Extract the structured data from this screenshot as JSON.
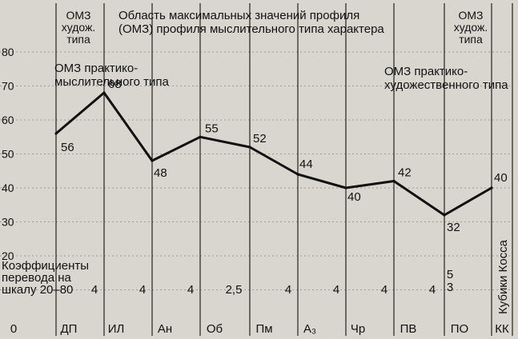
{
  "chart_data": {
    "type": "line",
    "categories": [
      "ДП",
      "ИЛ",
      "Ан",
      "Об",
      "Пм",
      "А₃",
      "Чр",
      "ПВ",
      "ПО",
      "КК"
    ],
    "leading_label": "0",
    "series": [
      {
        "values": [
          56,
          68,
          48,
          55,
          52,
          44,
          40,
          42,
          32,
          40
        ]
      }
    ],
    "data_labels": [
      "56",
      "68",
      "48",
      "55",
      "52",
      "44",
      "40",
      "42",
      "32",
      "40"
    ],
    "ylim": [
      0,
      80
    ],
    "yticks": [
      "80",
      "70",
      "60",
      "50",
      "40",
      "30",
      "20"
    ],
    "coef_label_lines": [
      "Коэффициенты",
      "перевода на",
      "шкалу 20–80"
    ],
    "coefficients": [
      "4",
      "4",
      "4",
      "2,5",
      "4",
      "4",
      "4",
      "4",
      "5",
      "3"
    ],
    "kk_vertical_label": "Кубики Косса",
    "annotations": {
      "omz_art_left": [
        "ОМЗ",
        "худож.",
        "типа"
      ],
      "omz_max_region": [
        "Область максимальных значений профиля",
        "(ОМЗ) профиля мыслительного типа характера"
      ],
      "omz_practical_thinking": [
        "ОМЗ практико-",
        "мыслительного типа"
      ],
      "omz_practical_art": [
        "ОМЗ практико-",
        "художественного типа"
      ],
      "omz_art_right": [
        "ОМЗ",
        "худож.",
        "типа"
      ]
    },
    "grid": true,
    "colors": {
      "background": "#d9d6cf",
      "ink": "#111111",
      "grid": "#8a8782"
    }
  }
}
